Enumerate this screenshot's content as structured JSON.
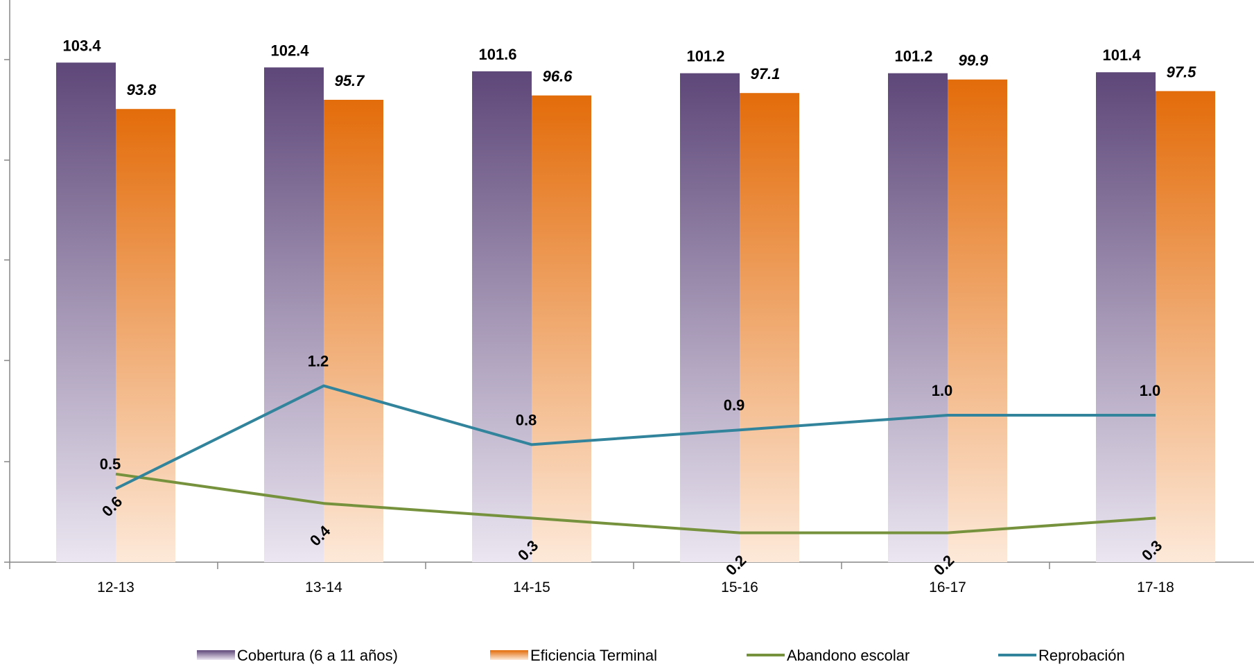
{
  "chart_data": {
    "type": "bar",
    "title": "",
    "xlabel": "",
    "ylabel": "",
    "categories": [
      "12-13",
      "13-14",
      "14-15",
      "15-16",
      "16-17",
      "17-18"
    ],
    "bar_series": [
      {
        "name": "Cobertura (6 a 11 años)",
        "values": [
          103.4,
          102.4,
          101.6,
          101.2,
          101.2,
          101.4
        ],
        "labels": [
          "103.4",
          "102.4",
          "101.6",
          "101.2",
          "101.2",
          "101.4"
        ],
        "color_top": "#5e4779",
        "color_bottom": "#ebe6f1"
      },
      {
        "name": "Eficiencia Terminal",
        "values": [
          93.8,
          95.7,
          96.6,
          97.1,
          99.9,
          97.5
        ],
        "labels": [
          "93.8",
          "95.7",
          "96.6",
          "97.1",
          "99.9",
          "97.5"
        ],
        "color_top": "#e36c0a",
        "color_bottom": "#fde9d9"
      }
    ],
    "line_series": [
      {
        "name": "Abandono escolar",
        "values": [
          0.6,
          0.4,
          0.3,
          0.2,
          0.2,
          0.3
        ],
        "labels": [
          "0.6",
          "0.4",
          "0.3",
          "0.2",
          "0.2",
          "0.3"
        ],
        "color": "#76923c"
      },
      {
        "name": "Reprobación",
        "values": [
          0.5,
          1.2,
          0.8,
          0.9,
          1.0,
          1.0
        ],
        "labels": [
          "0.5",
          "1.2",
          "0.8",
          "0.9",
          "1.0",
          "1.0"
        ],
        "color": "#31849b"
      }
    ],
    "legend": {
      "position": "bottom"
    },
    "grid": false
  }
}
